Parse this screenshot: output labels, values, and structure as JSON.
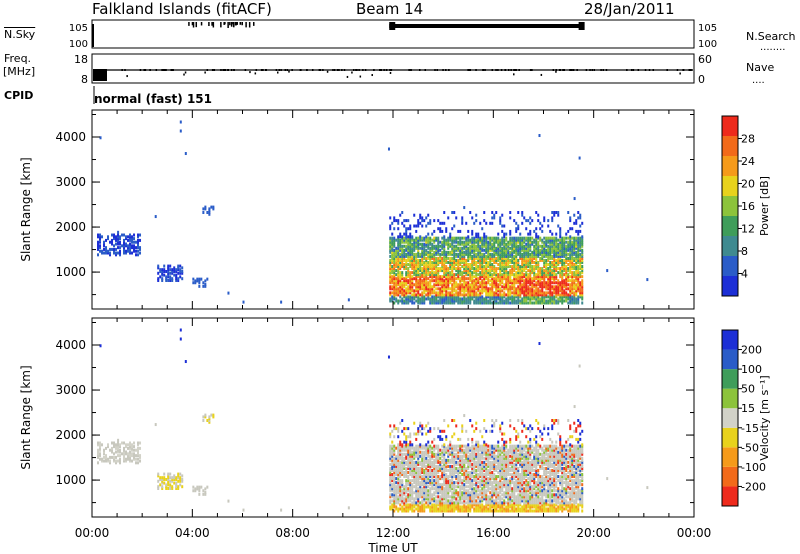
{
  "header": {
    "title": "Falkland Islands (fitACF)",
    "beam": "Beam 14",
    "date": "28/Jan/2011"
  },
  "side_labels": {
    "nsky": "N.Sky",
    "freq": "Freq.",
    "freq_unit": "[MHz]",
    "cpid": "CPID",
    "nsearch": "N.Search",
    "nave": "Nave"
  },
  "mode_label": "normal (fast) 151",
  "strips": {
    "noise": {
      "left_ticks": [
        "10^5",
        "10^0"
      ],
      "right_ticks": [
        "10^5",
        "10^0"
      ]
    },
    "freq": {
      "left_ticks": [
        "18",
        "8"
      ],
      "right_ticks": [
        "60",
        "0"
      ]
    }
  },
  "colors": {
    "power": [
      "#1c2fd6",
      "#2a5cc8",
      "#3f8a90",
      "#3f9d5a",
      "#8cc33b",
      "#e8d21c",
      "#f59a1a",
      "#f26a1a",
      "#ee2a1c"
    ],
    "velocity": [
      "#ee2a1c",
      "#f26a1a",
      "#f59a1a",
      "#e8d21c",
      "#d2d2c8",
      "#8cc33b",
      "#3f9d5a",
      "#2a5cc8",
      "#1c2fd6"
    ],
    "ground_scatter": "#c8c8be"
  },
  "chart_data": [
    {
      "type": "heatmap",
      "name": "power",
      "ylabel": "Slant Range [km]",
      "xlabel": "Time UT",
      "x_ticks": [
        "00:00",
        "04:00",
        "08:00",
        "12:00",
        "16:00",
        "20:00",
        "00:00"
      ],
      "y_ticks": [
        1000,
        2000,
        3000,
        4000
      ],
      "ylim": [
        180,
        4600
      ],
      "xlim_hours": [
        0,
        24
      ],
      "colorbar": {
        "label": "Power [dB]",
        "ticks": [
          "28",
          "24",
          "20",
          "16",
          "12",
          "8",
          "4"
        ],
        "range": [
          0,
          32
        ]
      },
      "echo_regions": [
        {
          "t": [
            11.85,
            19.55
          ],
          "r": [
            250,
            1700
          ],
          "core_dB": 26,
          "note_only": ""
        },
        {
          "t": [
            0.2,
            1.8
          ],
          "r": [
            1350,
            1800
          ],
          "core_dB": 5
        },
        {
          "t": [
            2.6,
            3.6
          ],
          "r": [
            800,
            1100
          ],
          "core_dB": 6
        }
      ]
    },
    {
      "type": "heatmap",
      "name": "velocity",
      "ylabel": "Slant Range [km]",
      "xlabel": "Time UT",
      "x_ticks": [
        "00:00",
        "04:00",
        "08:00",
        "12:00",
        "16:00",
        "20:00",
        "00:00"
      ],
      "y_ticks": [
        1000,
        2000,
        3000,
        4000
      ],
      "ylim": [
        180,
        4600
      ],
      "xlim_hours": [
        0,
        24
      ],
      "colorbar": {
        "label": "Velocity [m s⁻¹]",
        "ticks": [
          "200",
          "100",
          "50",
          "15",
          "-15",
          "-50",
          "-100",
          "-200"
        ],
        "range": [
          -250,
          250
        ]
      }
    }
  ]
}
